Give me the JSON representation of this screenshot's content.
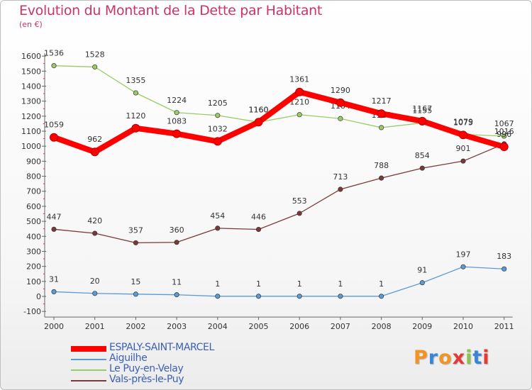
{
  "title": "Evolution du Montant de la Dette par Habitant",
  "subtitle": "(en €)",
  "logo": {
    "text": "Proxiti",
    "colors": [
      "#f29424",
      "#3a86d6",
      "#f29424",
      "#e53935",
      "#8bc34a",
      "#3a86d6",
      "#e53935"
    ]
  },
  "chart_data": {
    "type": "line",
    "title": "Evolution du Montant de la Dette par Habitant",
    "subtitle": "(en €)",
    "x": [
      2000,
      2001,
      2002,
      2003,
      2004,
      2005,
      2006,
      2007,
      2008,
      2009,
      2010,
      2011
    ],
    "ylim": [
      -100,
      1600
    ],
    "yticks": [
      -100,
      0,
      100,
      200,
      300,
      400,
      500,
      600,
      700,
      800,
      900,
      1000,
      1100,
      1200,
      1300,
      1400,
      1500,
      1600
    ],
    "grid": false,
    "legend_position": "bottom-left",
    "series": [
      {
        "name": "ESPALY-SAINT-MARCEL",
        "color": "#ff0000",
        "values": [
          1059,
          962,
          1120,
          1083,
          1032,
          1160,
          1361,
          1290,
          1217,
          1167,
          1075,
          996
        ]
      },
      {
        "name": "Aiguilhe",
        "color": "#5b9bd5",
        "values": [
          31,
          20,
          15,
          11,
          1,
          1,
          1,
          1,
          1,
          91,
          197,
          183
        ]
      },
      {
        "name": "Le Puy-en-Velay",
        "color": "#99cc66",
        "values": [
          1536,
          1528,
          1355,
          1224,
          1205,
          1160,
          1210,
          1184,
          1124,
          1155,
          1079,
          1067
        ]
      },
      {
        "name": "Vals-près-le-Puy",
        "color": "#7a3838",
        "values": [
          447,
          420,
          357,
          360,
          454,
          446,
          553,
          713,
          788,
          854,
          901,
          1016
        ]
      }
    ]
  }
}
